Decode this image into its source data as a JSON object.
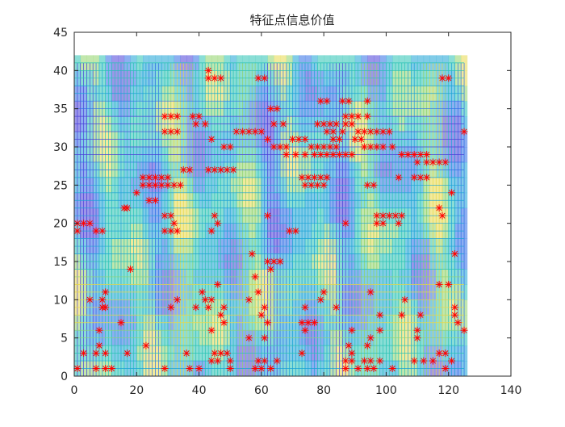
{
  "window": {
    "background": "#ffffff"
  },
  "chart_data": {
    "type": "scatter",
    "title": "特征点信息价值",
    "xlabel": "",
    "ylabel": "",
    "xlim": [
      0,
      140
    ],
    "ylim": [
      0,
      45
    ],
    "x_ticks": [
      0,
      20,
      40,
      60,
      80,
      100,
      120,
      140
    ],
    "y_ticks": [
      0,
      5,
      10,
      15,
      20,
      25,
      30,
      35,
      40,
      45
    ],
    "x_tick_labels": [
      "0",
      "20",
      "40",
      "60",
      "80",
      "100",
      "120",
      "140"
    ],
    "y_tick_labels": [
      "0",
      "5",
      "10",
      "15",
      "20",
      "25",
      "30",
      "35",
      "40",
      "45"
    ],
    "grid": "off",
    "box": "on",
    "legend": "none",
    "background_surface": {
      "type": "mesh",
      "x_range": [
        0,
        125
      ],
      "y_range": [
        0,
        41
      ],
      "colormap": "parula",
      "colors": [
        "#4a3fd9",
        "#2f6ee6",
        "#1aa3d6",
        "#29c3b4",
        "#8fd36a",
        "#e8d84a"
      ]
    },
    "marker_color": "#ff0000",
    "series": [
      {
        "marker": "star",
        "points": [
          [
            1,
            20
          ],
          [
            3,
            20
          ],
          [
            5,
            20
          ],
          [
            1,
            19
          ],
          [
            7,
            19
          ],
          [
            9,
            19
          ],
          [
            16,
            22
          ],
          [
            17,
            22
          ],
          [
            18,
            14
          ],
          [
            20,
            24
          ],
          [
            22,
            26
          ],
          [
            24,
            26
          ],
          [
            26,
            26
          ],
          [
            28,
            26
          ],
          [
            30,
            26
          ],
          [
            22,
            25
          ],
          [
            24,
            25
          ],
          [
            26,
            25
          ],
          [
            28,
            25
          ],
          [
            30,
            25
          ],
          [
            32,
            25
          ],
          [
            34,
            25
          ],
          [
            24,
            23
          ],
          [
            26,
            23
          ],
          [
            29,
            34
          ],
          [
            31,
            34
          ],
          [
            33,
            34
          ],
          [
            29,
            32
          ],
          [
            31,
            32
          ],
          [
            33,
            32
          ],
          [
            35,
            27
          ],
          [
            37,
            27
          ],
          [
            29,
            21
          ],
          [
            31,
            21
          ],
          [
            32,
            20
          ],
          [
            29,
            19
          ],
          [
            31,
            19
          ],
          [
            33,
            19
          ],
          [
            38,
            34
          ],
          [
            40,
            34
          ],
          [
            39,
            33
          ],
          [
            42,
            33
          ],
          [
            44,
            31
          ],
          [
            43,
            27
          ],
          [
            45,
            27
          ],
          [
            47,
            27
          ],
          [
            49,
            27
          ],
          [
            51,
            27
          ],
          [
            44,
            19
          ],
          [
            45,
            21
          ],
          [
            46,
            20
          ],
          [
            43,
            39
          ],
          [
            45,
            39
          ],
          [
            47,
            39
          ],
          [
            43,
            40
          ],
          [
            59,
            39
          ],
          [
            61,
            39
          ],
          [
            52,
            32
          ],
          [
            54,
            32
          ],
          [
            56,
            32
          ],
          [
            58,
            32
          ],
          [
            60,
            32
          ],
          [
            50,
            30
          ],
          [
            48,
            30
          ],
          [
            63,
            35
          ],
          [
            65,
            35
          ],
          [
            64,
            33
          ],
          [
            67,
            33
          ],
          [
            62,
            31
          ],
          [
            64,
            30
          ],
          [
            66,
            30
          ],
          [
            68,
            30
          ],
          [
            70,
            31
          ],
          [
            72,
            31
          ],
          [
            74,
            31
          ],
          [
            68,
            29
          ],
          [
            71,
            29
          ],
          [
            74,
            29
          ],
          [
            76,
            30
          ],
          [
            78,
            30
          ],
          [
            80,
            30
          ],
          [
            82,
            30
          ],
          [
            84,
            30
          ],
          [
            77,
            29
          ],
          [
            79,
            29
          ],
          [
            81,
            29
          ],
          [
            83,
            29
          ],
          [
            85,
            29
          ],
          [
            87,
            29
          ],
          [
            89,
            29
          ],
          [
            79,
            36
          ],
          [
            81,
            36
          ],
          [
            86,
            36
          ],
          [
            88,
            36
          ],
          [
            78,
            33
          ],
          [
            80,
            33
          ],
          [
            82,
            33
          ],
          [
            84,
            33
          ],
          [
            87,
            33
          ],
          [
            89,
            33
          ],
          [
            81,
            32
          ],
          [
            83,
            32
          ],
          [
            86,
            32
          ],
          [
            83,
            31
          ],
          [
            85,
            31
          ],
          [
            87,
            34
          ],
          [
            89,
            34
          ],
          [
            91,
            34
          ],
          [
            94,
            34
          ],
          [
            94,
            36
          ],
          [
            91,
            32
          ],
          [
            93,
            32
          ],
          [
            95,
            32
          ],
          [
            97,
            32
          ],
          [
            99,
            32
          ],
          [
            101,
            32
          ],
          [
            90,
            31
          ],
          [
            92,
            31
          ],
          [
            93,
            30
          ],
          [
            95,
            30
          ],
          [
            97,
            30
          ],
          [
            99,
            30
          ],
          [
            102,
            30
          ],
          [
            105,
            29
          ],
          [
            107,
            29
          ],
          [
            109,
            29
          ],
          [
            111,
            29
          ],
          [
            113,
            29
          ],
          [
            110,
            28
          ],
          [
            113,
            28
          ],
          [
            115,
            28
          ],
          [
            117,
            28
          ],
          [
            119,
            28
          ],
          [
            104,
            26
          ],
          [
            109,
            26
          ],
          [
            111,
            26
          ],
          [
            113,
            26
          ],
          [
            118,
            39
          ],
          [
            120,
            39
          ],
          [
            125,
            32
          ],
          [
            121,
            24
          ],
          [
            73,
            26
          ],
          [
            75,
            26
          ],
          [
            77,
            26
          ],
          [
            79,
            26
          ],
          [
            81,
            26
          ],
          [
            74,
            25
          ],
          [
            76,
            25
          ],
          [
            78,
            25
          ],
          [
            80,
            25
          ],
          [
            94,
            25
          ],
          [
            96,
            25
          ],
          [
            62,
            21
          ],
          [
            69,
            19
          ],
          [
            71,
            19
          ],
          [
            87,
            20
          ],
          [
            97,
            21
          ],
          [
            99,
            21
          ],
          [
            101,
            21
          ],
          [
            103,
            21
          ],
          [
            105,
            21
          ],
          [
            97,
            20
          ],
          [
            99,
            20
          ],
          [
            104,
            20
          ],
          [
            117,
            22
          ],
          [
            118,
            21
          ],
          [
            57,
            16
          ],
          [
            62,
            15
          ],
          [
            64,
            15
          ],
          [
            66,
            15
          ],
          [
            63,
            14
          ],
          [
            58,
            13
          ],
          [
            122,
            16
          ],
          [
            117,
            12
          ],
          [
            5,
            10
          ],
          [
            10,
            11
          ],
          [
            9,
            10
          ],
          [
            9,
            9
          ],
          [
            10,
            9
          ],
          [
            8,
            6
          ],
          [
            8,
            4
          ],
          [
            7,
            3
          ],
          [
            10,
            3
          ],
          [
            7,
            1
          ],
          [
            10,
            1
          ],
          [
            12,
            1
          ],
          [
            15,
            7
          ],
          [
            17,
            3
          ],
          [
            1,
            1
          ],
          [
            3,
            3
          ],
          [
            23,
            4
          ],
          [
            29,
            1
          ],
          [
            31,
            9
          ],
          [
            33,
            10
          ],
          [
            36,
            3
          ],
          [
            37,
            1
          ],
          [
            39,
            9
          ],
          [
            40,
            1
          ],
          [
            41,
            11
          ],
          [
            42,
            10
          ],
          [
            43,
            9
          ],
          [
            44,
            10
          ],
          [
            46,
            12
          ],
          [
            44,
            6
          ],
          [
            47,
            8
          ],
          [
            48,
            9
          ],
          [
            48,
            7
          ],
          [
            45,
            3
          ],
          [
            47,
            3
          ],
          [
            49,
            3
          ],
          [
            44,
            2
          ],
          [
            46,
            2
          ],
          [
            50,
            1
          ],
          [
            50,
            2
          ],
          [
            56,
            10
          ],
          [
            59,
            11
          ],
          [
            61,
            9
          ],
          [
            60,
            8
          ],
          [
            62,
            7
          ],
          [
            59,
            2
          ],
          [
            61,
            2
          ],
          [
            63,
            1
          ],
          [
            58,
            1
          ],
          [
            60,
            1
          ],
          [
            65,
            2
          ],
          [
            61,
            5
          ],
          [
            56,
            5
          ],
          [
            74,
            9
          ],
          [
            73,
            7
          ],
          [
            75,
            7
          ],
          [
            77,
            7
          ],
          [
            74,
            6
          ],
          [
            73,
            3
          ],
          [
            80,
            11
          ],
          [
            79,
            10
          ],
          [
            84,
            9
          ],
          [
            89,
            6
          ],
          [
            88,
            4
          ],
          [
            89,
            3
          ],
          [
            87,
            2
          ],
          [
            89,
            2
          ],
          [
            91,
            1
          ],
          [
            87,
            1
          ],
          [
            93,
            2
          ],
          [
            94,
            4
          ],
          [
            95,
            5
          ],
          [
            95,
            2
          ],
          [
            94,
            1
          ],
          [
            96,
            1
          ],
          [
            95,
            11
          ],
          [
            98,
            8
          ],
          [
            98,
            6
          ],
          [
            98,
            2
          ],
          [
            102,
            1
          ],
          [
            105,
            8
          ],
          [
            106,
            10
          ],
          [
            111,
            8
          ],
          [
            110,
            6
          ],
          [
            110,
            5
          ],
          [
            109,
            2
          ],
          [
            112,
            2
          ],
          [
            115,
            2
          ],
          [
            117,
            3
          ],
          [
            119,
            3
          ],
          [
            121,
            2
          ],
          [
            119,
            1
          ],
          [
            120,
            12
          ],
          [
            122,
            9
          ],
          [
            122,
            8
          ],
          [
            123,
            7
          ],
          [
            125,
            6
          ]
        ]
      }
    ]
  }
}
